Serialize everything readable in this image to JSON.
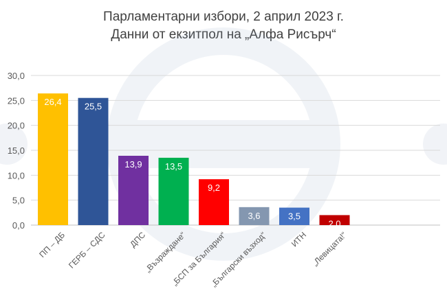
{
  "title": "Парламентарни избори, 2 април 2023 г.",
  "subtitle": "Данни от екзитпол на „Алфа Рисърч“",
  "chart_data": {
    "type": "bar",
    "title": "Парламентарни избори, 2 април 2023 г.",
    "subtitle": "Данни от екзитпол на „Алфа Рисърч“",
    "xlabel": "",
    "ylabel": "",
    "ylim": [
      0,
      30
    ],
    "yticks": [
      "0,0",
      "5,0",
      "10,0",
      "15,0",
      "20,0",
      "25,0",
      "30,0"
    ],
    "grid": true,
    "categories": [
      "ПП – ДБ",
      "ГЕРБ – СДС",
      "ДПС",
      "„Възраждане“",
      "„БСП за България“",
      "„Български възход“",
      "ИТН",
      "„Левицата!“"
    ],
    "values": [
      26.4,
      25.5,
      13.9,
      13.5,
      9.2,
      3.6,
      3.5,
      2.0
    ],
    "value_labels": [
      "26,4",
      "25,5",
      "13,9",
      "13,5",
      "9,2",
      "3,6",
      "3,5",
      "2,0"
    ],
    "colors": [
      "#FFC000",
      "#2F5597",
      "#7030A0",
      "#00B050",
      "#FF0000",
      "#8497B0",
      "#4472C4",
      "#C00000"
    ],
    "label_color": "#ffffff"
  }
}
